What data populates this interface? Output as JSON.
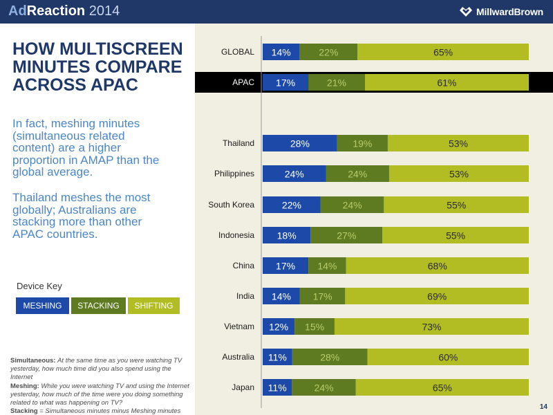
{
  "header": {
    "brand_ad": "Ad",
    "brand_rest": "Reaction",
    "year": "2014",
    "logo_text": "MillwardBrown"
  },
  "left": {
    "headline_lines": [
      "HOW MULTISCREEN",
      "MINUTES COMPARE",
      "ACROSS APAC"
    ],
    "body_1_lines": [
      "In fact, meshing minutes",
      "(simultaneous related",
      "content) are a higher",
      "proportion in AMAP than the",
      "global average."
    ],
    "body_2_lines": [
      "Thailand meshes the most",
      "globally; Australians are",
      "stacking more than other",
      "APAC countries."
    ],
    "device_key_label": "Device Key",
    "keys": {
      "meshing": "MESHING",
      "stacking": "STACKING",
      "shifting": "SHIFTING"
    },
    "footnotes": {
      "simultaneous_term": "Simultaneous:",
      "simultaneous_def_1": "At the same time as you were watching TV",
      "simultaneous_def_2": "yesterday, how much time did you also spend using the Internet",
      "meshing_term": "Meshing:",
      "meshing_def_1": "While you were watching TV and using the Internet",
      "meshing_def_2": "yesterday, how much of the time were you doing something",
      "meshing_def_3": "related to what was happening on TV?",
      "stacking_term": "Stacking",
      "stacking_def": "= Simultaneous minutes minus Meshing minutes"
    }
  },
  "page_number": "14",
  "colors": {
    "meshing": "#1d4aa8",
    "stacking": "#5e7b22",
    "shifting": "#b1bd22",
    "highlight": "#000000",
    "chart_bg": "#f1efe2"
  },
  "chart_data": {
    "type": "bar",
    "orientation": "horizontal",
    "stacked": true,
    "unit": "%",
    "xlim": [
      0,
      100
    ],
    "categories": [
      "GLOBAL",
      "APAC",
      "Thailand",
      "Philippines",
      "South Korea",
      "Indonesia",
      "China",
      "India",
      "Vietnam",
      "Australia",
      "Japan"
    ],
    "highlighted_category": "APAC",
    "series": [
      {
        "name": "MESHING",
        "values": [
          14,
          17,
          28,
          24,
          22,
          18,
          17,
          14,
          12,
          11,
          11
        ]
      },
      {
        "name": "STACKING",
        "values": [
          22,
          21,
          19,
          24,
          24,
          27,
          14,
          17,
          15,
          28,
          24
        ]
      },
      {
        "name": "SHIFTING",
        "values": [
          65,
          61,
          53,
          53,
          55,
          55,
          68,
          69,
          73,
          60,
          65
        ]
      }
    ]
  }
}
